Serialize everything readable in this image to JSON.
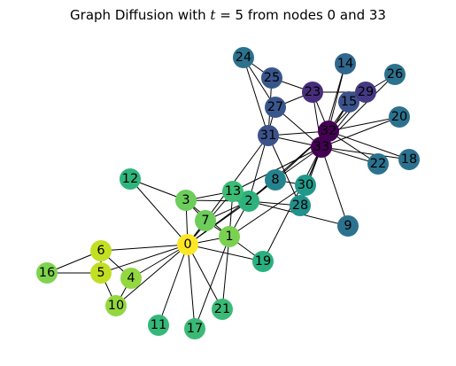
{
  "title": {
    "prefix": "Graph Diffusion with ",
    "variable": "t",
    "equals": " = 5 from nodes 0 and 33"
  },
  "graph": {
    "nodes": [
      {
        "id": "0",
        "color": "#fde725"
      },
      {
        "id": "1",
        "color": "#7ad151"
      },
      {
        "id": "2",
        "color": "#2db27d"
      },
      {
        "id": "3",
        "color": "#6ccd5a"
      },
      {
        "id": "4",
        "color": "#93d741"
      },
      {
        "id": "5",
        "color": "#c2df23"
      },
      {
        "id": "6",
        "color": "#c2df23"
      },
      {
        "id": "7",
        "color": "#6ccd5a"
      },
      {
        "id": "8",
        "color": "#25838e"
      },
      {
        "id": "9",
        "color": "#2c728e"
      },
      {
        "id": "10",
        "color": "#93d741"
      },
      {
        "id": "11",
        "color": "#35b779"
      },
      {
        "id": "12",
        "color": "#2fb47c"
      },
      {
        "id": "13",
        "color": "#3cbc74"
      },
      {
        "id": "14",
        "color": "#31688e"
      },
      {
        "id": "15",
        "color": "#3b528b"
      },
      {
        "id": "16",
        "color": "#7fd34e"
      },
      {
        "id": "17",
        "color": "#3aba76"
      },
      {
        "id": "18",
        "color": "#2c728e"
      },
      {
        "id": "19",
        "color": "#2ab07f"
      },
      {
        "id": "20",
        "color": "#2c728e"
      },
      {
        "id": "21",
        "color": "#3aba76"
      },
      {
        "id": "22",
        "color": "#2c728e"
      },
      {
        "id": "23",
        "color": "#472d7b"
      },
      {
        "id": "24",
        "color": "#2c728e"
      },
      {
        "id": "25",
        "color": "#39568c"
      },
      {
        "id": "26",
        "color": "#2c728e"
      },
      {
        "id": "27",
        "color": "#39568c"
      },
      {
        "id": "28",
        "color": "#21918c"
      },
      {
        "id": "29",
        "color": "#443983"
      },
      {
        "id": "30",
        "color": "#1f9a8a"
      },
      {
        "id": "31",
        "color": "#3b528b"
      },
      {
        "id": "32",
        "color": "#440154"
      },
      {
        "id": "33",
        "color": "#440154"
      }
    ],
    "edges": [
      [
        "0",
        "1"
      ],
      [
        "0",
        "2"
      ],
      [
        "0",
        "3"
      ],
      [
        "0",
        "4"
      ],
      [
        "0",
        "5"
      ],
      [
        "0",
        "6"
      ],
      [
        "0",
        "7"
      ],
      [
        "0",
        "8"
      ],
      [
        "0",
        "10"
      ],
      [
        "0",
        "11"
      ],
      [
        "0",
        "12"
      ],
      [
        "0",
        "13"
      ],
      [
        "0",
        "17"
      ],
      [
        "0",
        "19"
      ],
      [
        "0",
        "21"
      ],
      [
        "0",
        "31"
      ],
      [
        "1",
        "2"
      ],
      [
        "1",
        "3"
      ],
      [
        "1",
        "7"
      ],
      [
        "1",
        "13"
      ],
      [
        "1",
        "17"
      ],
      [
        "1",
        "19"
      ],
      [
        "1",
        "21"
      ],
      [
        "1",
        "30"
      ],
      [
        "2",
        "3"
      ],
      [
        "2",
        "7"
      ],
      [
        "2",
        "8"
      ],
      [
        "2",
        "9"
      ],
      [
        "2",
        "13"
      ],
      [
        "2",
        "27"
      ],
      [
        "2",
        "28"
      ],
      [
        "2",
        "32"
      ],
      [
        "3",
        "7"
      ],
      [
        "3",
        "12"
      ],
      [
        "3",
        "13"
      ],
      [
        "4",
        "6"
      ],
      [
        "4",
        "10"
      ],
      [
        "5",
        "6"
      ],
      [
        "5",
        "10"
      ],
      [
        "5",
        "16"
      ],
      [
        "6",
        "16"
      ],
      [
        "8",
        "30"
      ],
      [
        "8",
        "32"
      ],
      [
        "8",
        "33"
      ],
      [
        "9",
        "33"
      ],
      [
        "13",
        "33"
      ],
      [
        "14",
        "32"
      ],
      [
        "14",
        "33"
      ],
      [
        "15",
        "32"
      ],
      [
        "15",
        "33"
      ],
      [
        "18",
        "32"
      ],
      [
        "18",
        "33"
      ],
      [
        "19",
        "33"
      ],
      [
        "20",
        "32"
      ],
      [
        "20",
        "33"
      ],
      [
        "22",
        "32"
      ],
      [
        "22",
        "33"
      ],
      [
        "23",
        "25"
      ],
      [
        "23",
        "27"
      ],
      [
        "23",
        "29"
      ],
      [
        "23",
        "32"
      ],
      [
        "23",
        "33"
      ],
      [
        "24",
        "25"
      ],
      [
        "24",
        "27"
      ],
      [
        "24",
        "31"
      ],
      [
        "25",
        "31"
      ],
      [
        "26",
        "29"
      ],
      [
        "26",
        "33"
      ],
      [
        "27",
        "33"
      ],
      [
        "28",
        "31"
      ],
      [
        "28",
        "33"
      ],
      [
        "29",
        "32"
      ],
      [
        "29",
        "33"
      ],
      [
        "30",
        "32"
      ],
      [
        "30",
        "33"
      ],
      [
        "31",
        "32"
      ],
      [
        "31",
        "33"
      ],
      [
        "32",
        "33"
      ]
    ]
  }
}
